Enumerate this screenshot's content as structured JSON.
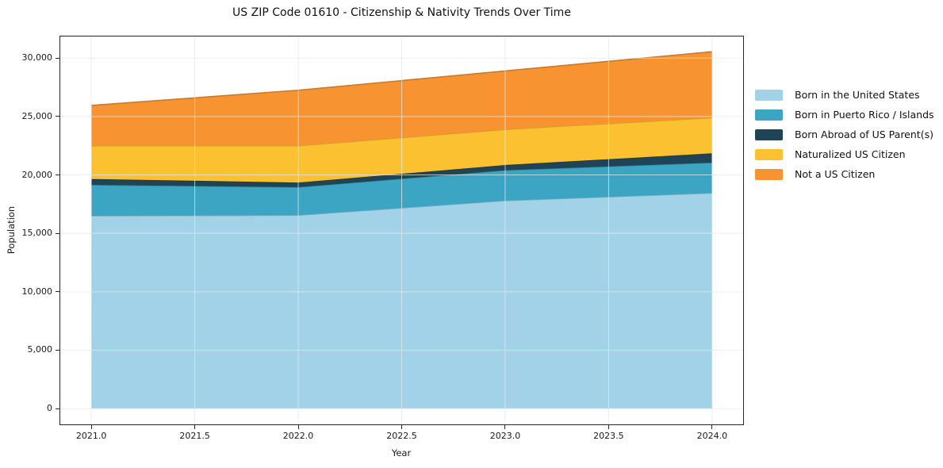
{
  "chart_data": {
    "type": "area",
    "stacked": true,
    "title": "US ZIP Code 01610 - Citizenship & Nativity Trends Over Time",
    "xlabel": "Year",
    "ylabel": "Population",
    "x": [
      2021,
      2022,
      2023,
      2024
    ],
    "series": [
      {
        "name": "Born in the United States",
        "color": "#A2D2E7",
        "values": [
          16500,
          16550,
          17800,
          18450
        ]
      },
      {
        "name": "Born in Puerto Rico / Islands",
        "color": "#3BA5C3",
        "values": [
          2650,
          2400,
          2600,
          2600
        ]
      },
      {
        "name": "Born Abroad of US Parent(s)",
        "color": "#1E4455",
        "values": [
          500,
          400,
          450,
          800
        ]
      },
      {
        "name": "Naturalized US Citizen",
        "color": "#FCC130",
        "values": [
          2850,
          3150,
          3050,
          3050
        ]
      },
      {
        "name": "Not a US Citizen",
        "color": "#F79431",
        "values": [
          3450,
          4750,
          5000,
          5650
        ]
      }
    ],
    "xticks": [
      {
        "v": 2021.0,
        "label": "2021.0"
      },
      {
        "v": 2021.5,
        "label": "2021.5"
      },
      {
        "v": 2022.0,
        "label": "2022.0"
      },
      {
        "v": 2022.5,
        "label": "2022.5"
      },
      {
        "v": 2023.0,
        "label": "2023.0"
      },
      {
        "v": 2023.5,
        "label": "2023.5"
      },
      {
        "v": 2024.0,
        "label": "2024.0"
      }
    ],
    "yticks": [
      {
        "v": 0,
        "label": "0"
      },
      {
        "v": 5000,
        "label": "5,000"
      },
      {
        "v": 10000,
        "label": "10,000"
      },
      {
        "v": 15000,
        "label": "15,000"
      },
      {
        "v": 20000,
        "label": "20,000"
      },
      {
        "v": 25000,
        "label": "25,000"
      },
      {
        "v": 30000,
        "label": "30,000"
      }
    ],
    "xlim": [
      2020.85,
      2024.15
    ],
    "ylim": [
      -1350,
      31850
    ],
    "grid": true,
    "legend_position": "right-outside"
  }
}
